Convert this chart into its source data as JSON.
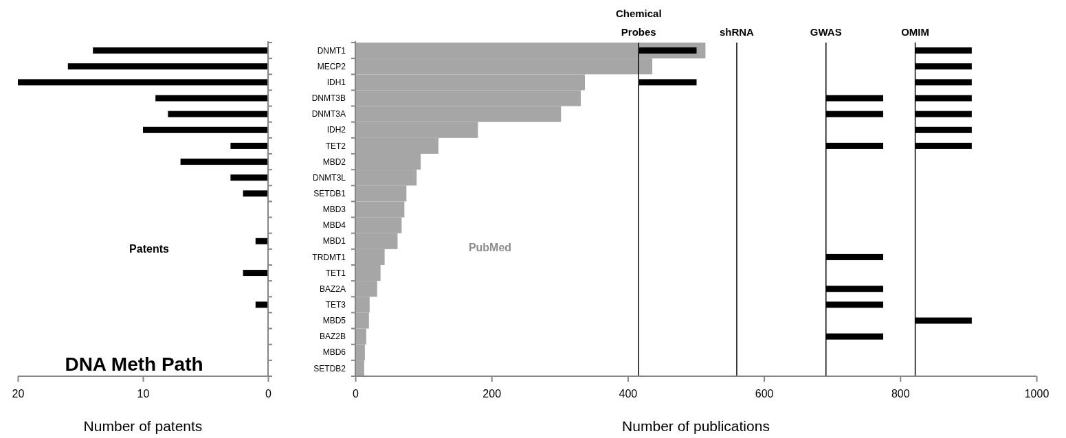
{
  "chart_data": [
    {
      "type": "bar",
      "orientation": "horizontal",
      "categories": [
        null,
        null,
        null,
        null,
        null,
        null,
        null,
        null,
        null,
        null,
        null,
        null,
        null,
        null,
        null,
        null,
        null,
        null,
        null,
        null,
        null
      ],
      "series": [
        {
          "name": "Patents",
          "color": "#000000",
          "values": [
            14,
            16,
            20,
            9,
            8,
            10,
            3,
            7,
            3,
            2,
            0,
            0,
            1,
            0,
            2,
            0,
            1,
            0,
            0,
            0,
            0
          ]
        }
      ],
      "xlim": [
        20,
        0
      ],
      "xticks": [
        20,
        10,
        0
      ],
      "xlabel": "Number of patents",
      "tick_labels": "x",
      "grid": false,
      "annotations": [
        "DNA Meth Path"
      ]
    },
    {
      "type": "bar",
      "orientation": "horizontal",
      "categories": [
        "DNMT1",
        "MECP2",
        "IDH1",
        "DNMT3B",
        "DNMT3A",
        "IDH2",
        "TET2",
        "MBD2",
        "DNMT3L",
        "SETDB1",
        "MBD3",
        "MBD4",
        "MBD1",
        "TRDMT1",
        "TET1",
        "BAZ2A",
        "TET3",
        "MBD5",
        "BAZ2B",
        "MBD6",
        "SETDB2"
      ],
      "series": [
        {
          "name": "PubMed",
          "color": "#a6a6a6",
          "values": [
            514,
            436,
            337,
            331,
            302,
            180,
            122,
            96,
            90,
            75,
            72,
            68,
            62,
            43,
            37,
            32,
            21,
            20,
            16,
            14,
            13
          ]
        },
        {
          "color": "#000000",
          "base": [
            416,
            null,
            416,
            null,
            null,
            null,
            null,
            null,
            null,
            null,
            null,
            null,
            null,
            null,
            null,
            null,
            null,
            null,
            null,
            null,
            null
          ],
          "values": [
            85,
            null,
            85,
            null,
            null,
            null,
            null,
            null,
            null,
            null,
            null,
            null,
            null,
            null,
            null,
            null,
            null,
            null,
            null,
            null,
            null
          ]
        },
        {
          "color": "#000000",
          "base": [
            null,
            null,
            null,
            691,
            691,
            null,
            691,
            null,
            null,
            null,
            null,
            null,
            null,
            691,
            null,
            691,
            691,
            null,
            691,
            null,
            null
          ],
          "values": [
            null,
            null,
            null,
            84,
            84,
            null,
            84,
            null,
            null,
            null,
            null,
            null,
            null,
            84,
            null,
            84,
            84,
            null,
            84,
            null,
            null
          ]
        },
        {
          "color": "#000000",
          "base": [
            822,
            822,
            822,
            822,
            822,
            822,
            822,
            null,
            null,
            null,
            null,
            null,
            null,
            null,
            null,
            null,
            null,
            822,
            null,
            null,
            null
          ],
          "values": [
            83,
            83,
            83,
            83,
            83,
            83,
            83,
            null,
            null,
            null,
            null,
            null,
            null,
            null,
            null,
            null,
            null,
            83,
            null,
            null,
            null
          ]
        }
      ],
      "xlim": [
        0,
        1000
      ],
      "xticks": [
        0,
        200,
        400,
        600,
        800,
        1000
      ],
      "xlabel": "Number of publications",
      "grid": false,
      "ref_lines": [
        {
          "axis": "x",
          "value": 416,
          "label": "Chemical Probes",
          "color": "#000000"
        },
        {
          "axis": "x",
          "value": 560,
          "label": "shRNA",
          "color": "#000000"
        },
        {
          "axis": "x",
          "value": 691,
          "label": "GWAS",
          "color": "#000000"
        },
        {
          "axis": "x",
          "value": 822,
          "label": "OMIM",
          "color": "#000000"
        }
      ]
    }
  ]
}
